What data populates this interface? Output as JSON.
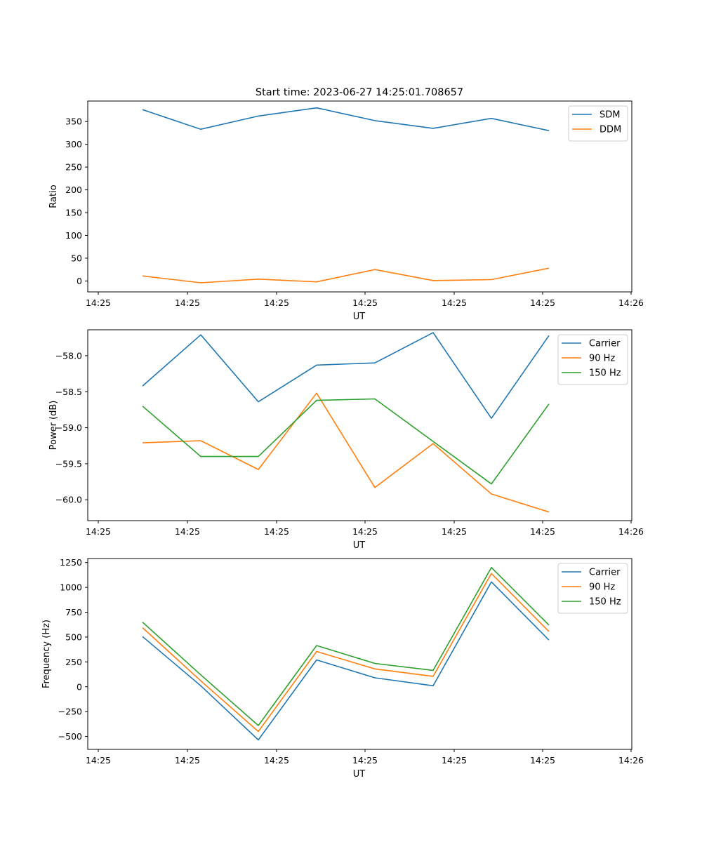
{
  "figure": {
    "title": "Start time: 2023-06-27 14:25:01.708657"
  },
  "chart_data": [
    {
      "type": "line",
      "title": "Start time: 2023-06-27 14:25:01.708657",
      "xlabel": "UT",
      "ylabel": "Ratio",
      "x_tick_labels": [
        "14:25",
        "14:25",
        "14:25",
        "14:25",
        "14:25",
        "14:25",
        "14:26"
      ],
      "y_ticks": [
        0,
        50,
        100,
        150,
        200,
        250,
        300,
        350
      ],
      "ylim": [
        -24,
        395
      ],
      "grid": false,
      "legend_position": "top-right",
      "series": [
        {
          "name": "SDM",
          "color": "#1f77b4",
          "values": [
            376,
            333,
            362,
            380,
            352,
            335,
            357,
            330
          ]
        },
        {
          "name": "DDM",
          "color": "#ff7f0e",
          "values": [
            11,
            -4,
            4,
            -2,
            25,
            1,
            3,
            28
          ]
        }
      ]
    },
    {
      "type": "line",
      "xlabel": "UT",
      "ylabel": "Power (dB)",
      "x_tick_labels": [
        "14:25",
        "14:25",
        "14:25",
        "14:25",
        "14:25",
        "14:25",
        "14:26"
      ],
      "y_ticks": [
        -60.0,
        -59.5,
        -59.0,
        -58.5,
        -58.0
      ],
      "y_tick_labels": [
        "−60.0",
        "−59.5",
        "−59.0",
        "−58.5",
        "−58.0"
      ],
      "ylim": [
        -60.29,
        -57.64
      ],
      "grid": false,
      "legend_position": "top-right",
      "series": [
        {
          "name": "Carrier",
          "color": "#1f77b4",
          "values": [
            -58.42,
            -57.71,
            -58.64,
            -58.13,
            -58.1,
            -57.68,
            -58.87,
            -57.72
          ]
        },
        {
          "name": "90 Hz",
          "color": "#ff7f0e",
          "values": [
            -59.21,
            -59.18,
            -59.58,
            -58.52,
            -59.83,
            -59.22,
            -59.92,
            -60.17
          ]
        },
        {
          "name": "150 Hz",
          "color": "#2ca02c",
          "values": [
            -58.7,
            -59.4,
            -59.4,
            -58.62,
            -58.6,
            -59.19,
            -59.78,
            -58.67
          ]
        }
      ]
    },
    {
      "type": "line",
      "xlabel": "UT",
      "ylabel": "Frequency (Hz)",
      "x_tick_labels": [
        "14:25",
        "14:25",
        "14:25",
        "14:25",
        "14:25",
        "14:25",
        "14:26"
      ],
      "y_ticks": [
        -500,
        -250,
        0,
        250,
        500,
        750,
        1000,
        1250
      ],
      "y_tick_labels": [
        "−500",
        "−250",
        "0",
        "250",
        "500",
        "750",
        "1000",
        "1250"
      ],
      "ylim": [
        -630,
        1290
      ],
      "grid": false,
      "legend_position": "top-right",
      "series": [
        {
          "name": "Carrier",
          "color": "#1f77b4",
          "values": [
            505,
            10,
            -535,
            270,
            90,
            10,
            1055,
            470
          ]
        },
        {
          "name": "90 Hz",
          "color": "#ff7f0e",
          "values": [
            595,
            60,
            -450,
            355,
            180,
            105,
            1140,
            555
          ]
        },
        {
          "name": "150 Hz",
          "color": "#2ca02c",
          "values": [
            650,
            120,
            -390,
            415,
            235,
            165,
            1200,
            620
          ]
        }
      ]
    }
  ]
}
